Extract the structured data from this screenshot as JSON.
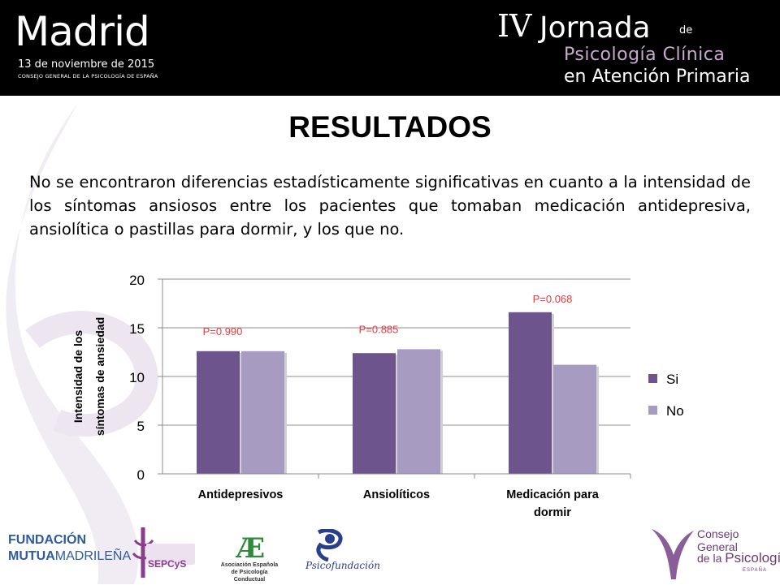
{
  "header": {
    "city": "Madrid",
    "date": "13 de noviembre de 2015",
    "org": "CONSEJO GENERAL DE LA PSICOLOGÍA DE ESPAÑA",
    "event_roman": "IV",
    "event_name": "Jornada",
    "event_de": "de",
    "event_line1": "Psicología Clínica",
    "event_line2": "en Atención Primaria"
  },
  "slide": {
    "title": "RESULTADOS",
    "text": "No se encontraron diferencias estadísticamente significativas en cuanto a la intensidad de los síntomas ansiosos entre los pacientes que tomaban medicación antidepresiva, ansiolítica o pastillas para dormir, y los que no."
  },
  "chart_data": {
    "type": "bar",
    "categories": [
      "Antidepresivos",
      "Ansiolíticos",
      "Medicación para dormir"
    ],
    "category_lines": [
      [
        "Antidepresivos"
      ],
      [
        "Ansiolíticos"
      ],
      [
        "Medicación para",
        "dormir"
      ]
    ],
    "series": [
      {
        "name": "Si",
        "values": [
          12.6,
          12.4,
          16.6
        ],
        "color": "#6e548d"
      },
      {
        "name": "No",
        "values": [
          12.6,
          12.8,
          11.2
        ],
        "color": "#a89bc2"
      }
    ],
    "annotations": [
      "P=0.990",
      "P=0.885",
      "P=0.068"
    ],
    "annotation_color": "#e8393e",
    "ylabel_lines": [
      "Intensidad de los",
      "síntomas de ansiedad"
    ],
    "yticks": [
      0,
      5,
      10,
      15,
      20
    ],
    "ylim": [
      0,
      20
    ],
    "grid": true,
    "legend_position": "right"
  },
  "footer": {
    "fundacion_l1": "FUNDACIÓN",
    "fundacion_l2a": "MUTUA",
    "fundacion_l2b": "MADRILEÑA",
    "sepcys": "SEPCyS",
    "aepc_line1": "Asociación Española",
    "aepc_line2": "de Psicología Conductual",
    "psicofundacion": "Psicofundación",
    "consejo_l1": "Consejo General",
    "consejo_l2a": "de la ",
    "consejo_l2b": "Psicología",
    "consejo_l3": "ESPAÑA"
  }
}
